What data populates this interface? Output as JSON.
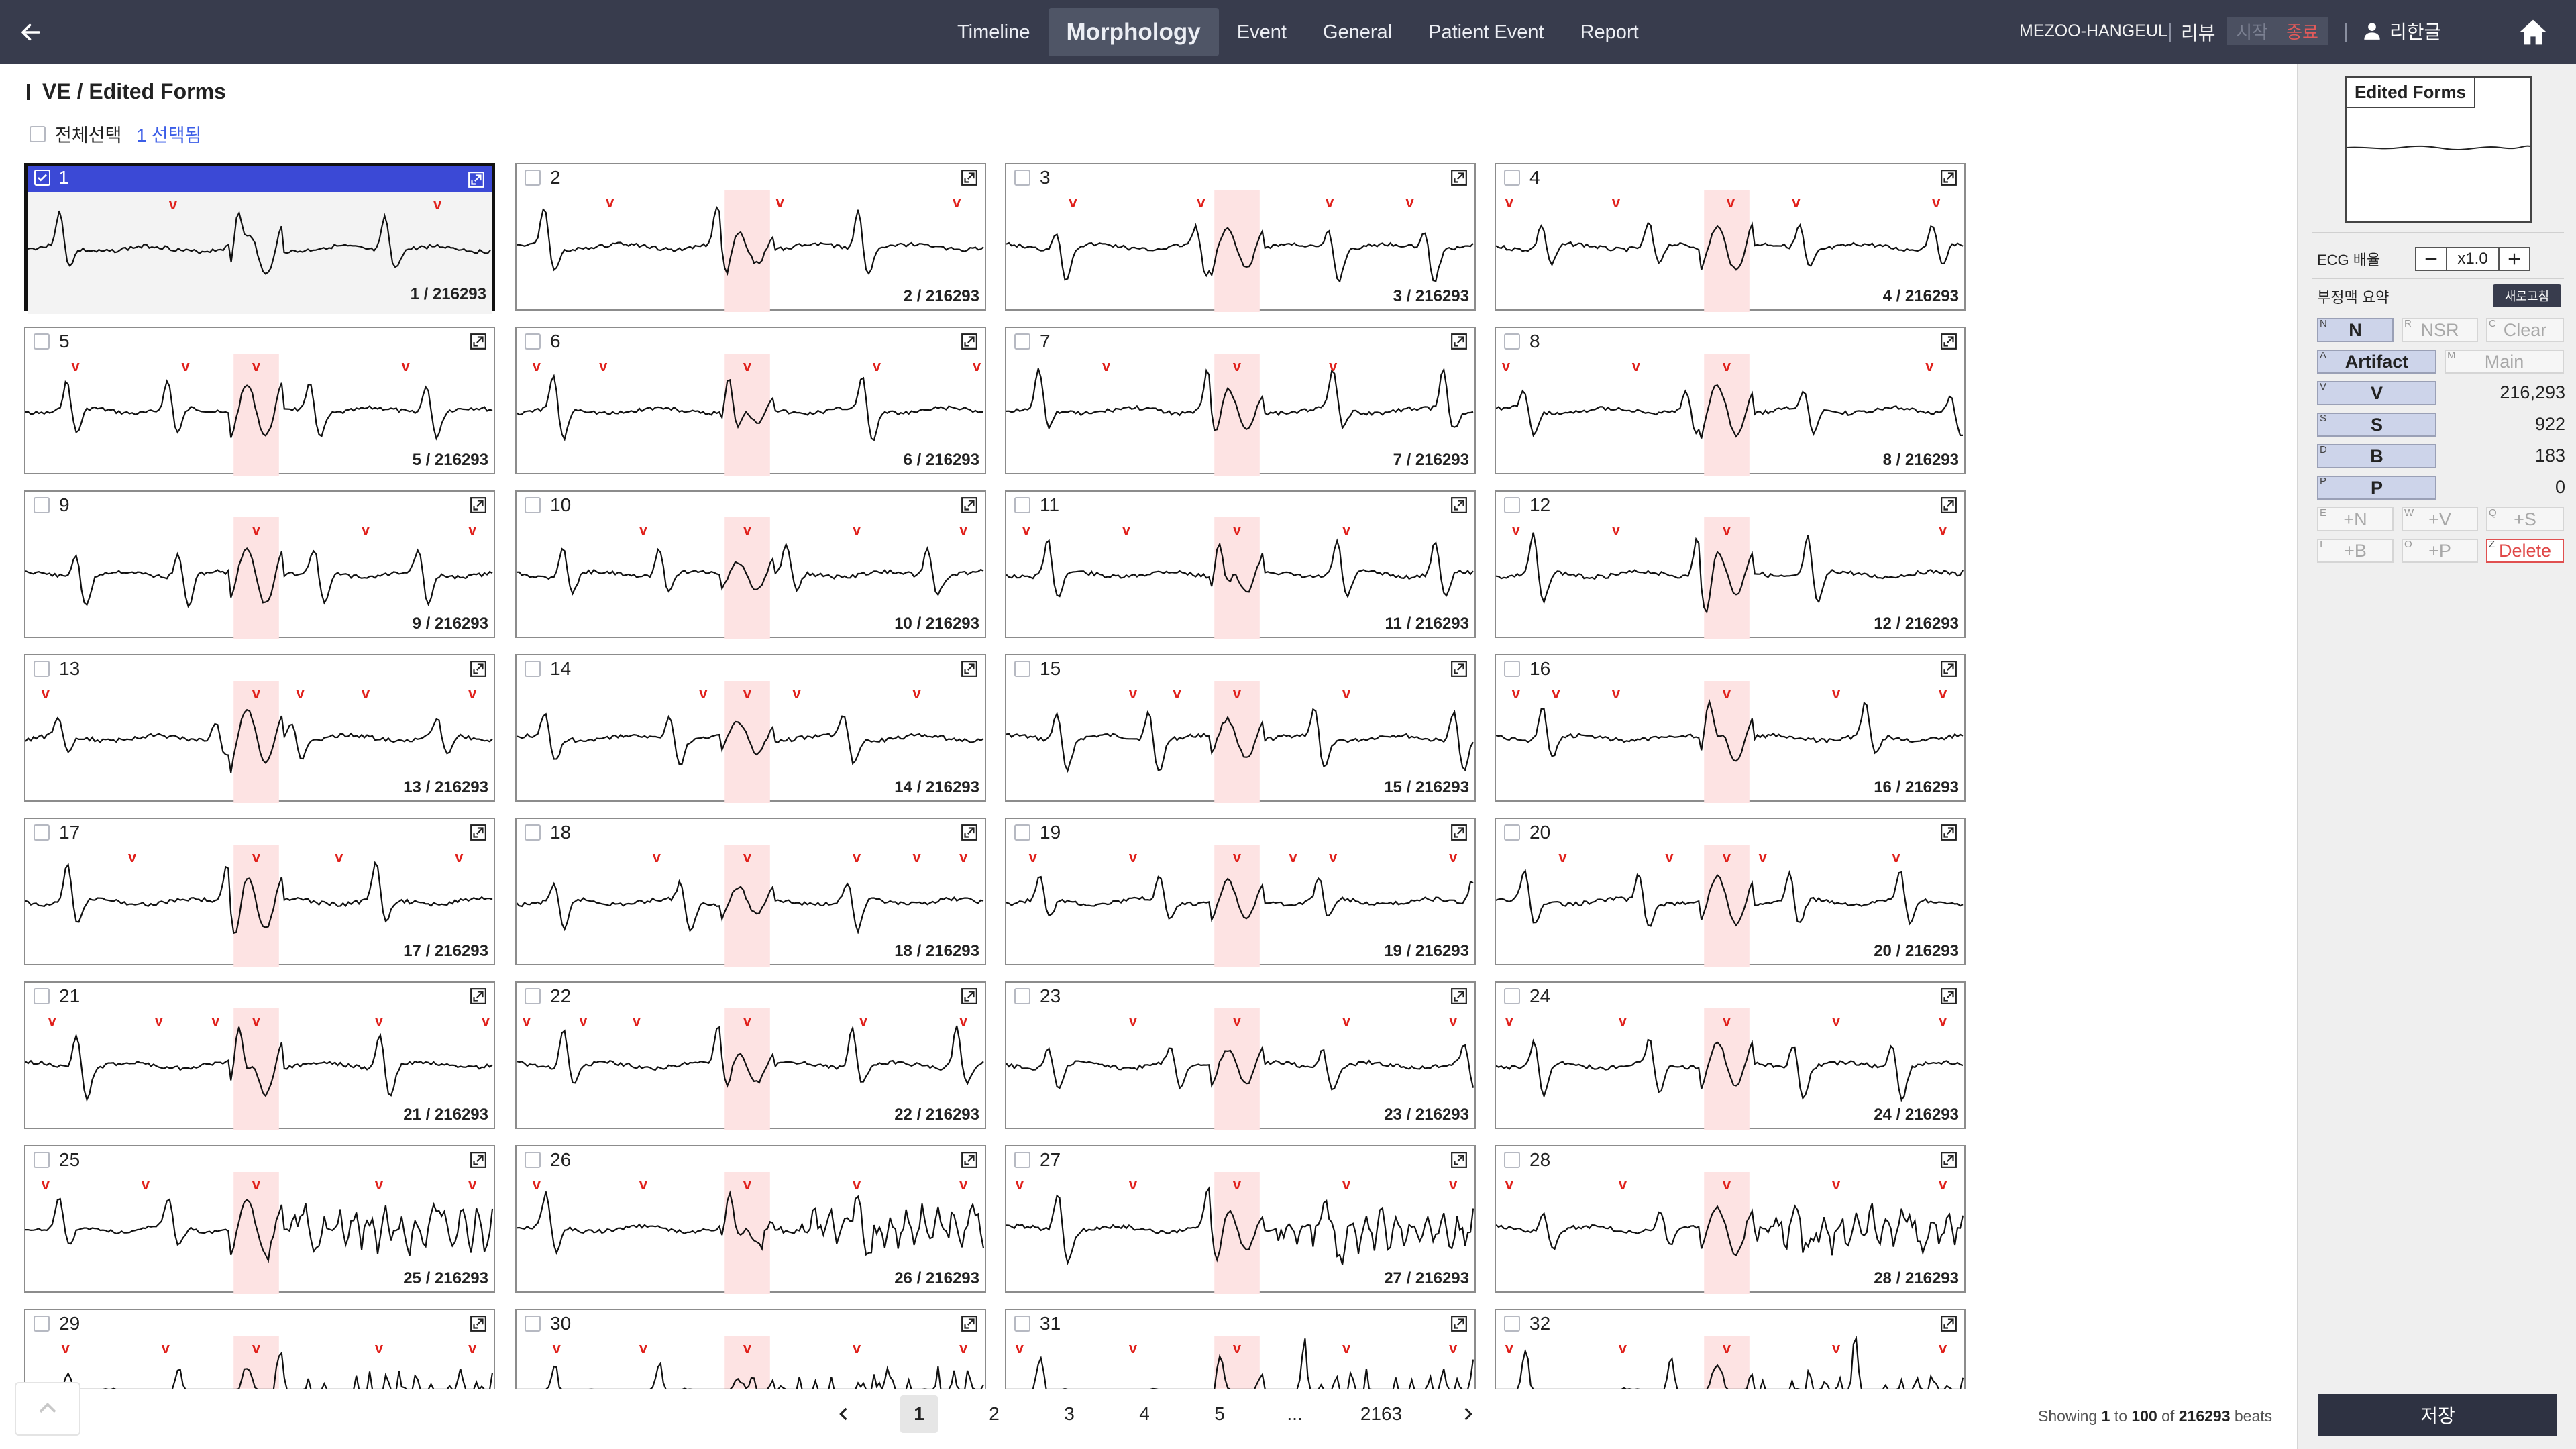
{
  "topbar": {
    "tabs": [
      {
        "label": "Timeline",
        "active": false
      },
      {
        "label": "Morphology",
        "active": true
      },
      {
        "label": "Event",
        "active": false
      },
      {
        "label": "General",
        "active": false
      },
      {
        "label": "Patient Event",
        "active": false
      },
      {
        "label": "Report",
        "active": false
      }
    ],
    "device_name": "MEZOO-HANGEUL",
    "review_label": "리뷰",
    "review_start": "시작",
    "review_end": "종료",
    "user_name": "리한글",
    "icons": {
      "back": "arrow-left-icon",
      "user": "user-icon",
      "home": "home-icon"
    }
  },
  "section": {
    "title": "VE / Edited Forms",
    "select_all_label": "전체선택",
    "selected_count": "1 선택됨"
  },
  "colors": {
    "topbar": "#383c4d",
    "selected_header": "#3b49d6",
    "beat_marker": "#e0201b",
    "highlight": "#fde3e3",
    "reset": "#383c4d"
  },
  "beats": [
    {
      "number": "1",
      "count": "1 / 216293",
      "selected": true
    },
    {
      "number": "2",
      "count": "2 / 216293",
      "selected": false
    },
    {
      "number": "3",
      "count": "3 / 216293",
      "selected": false
    },
    {
      "number": "4",
      "count": "4 / 216293",
      "selected": false
    },
    {
      "number": "5",
      "count": "5 / 216293",
      "selected": false
    },
    {
      "number": "6",
      "count": "6 / 216293",
      "selected": false
    },
    {
      "number": "7",
      "count": "7 / 216293",
      "selected": false
    },
    {
      "number": "8",
      "count": "8 / 216293",
      "selected": false
    },
    {
      "number": "9",
      "count": "9 / 216293",
      "selected": false
    },
    {
      "number": "10",
      "count": "10 / 216293",
      "selected": false
    },
    {
      "number": "11",
      "count": "11 / 216293",
      "selected": false
    },
    {
      "number": "12",
      "count": "12 / 216293",
      "selected": false
    },
    {
      "number": "13",
      "count": "13 / 216293",
      "selected": false
    },
    {
      "number": "14",
      "count": "14 / 216293",
      "selected": false
    },
    {
      "number": "15",
      "count": "15 / 216293",
      "selected": false
    },
    {
      "number": "16",
      "count": "16 / 216293",
      "selected": false
    },
    {
      "number": "17",
      "count": "17 / 216293",
      "selected": false
    },
    {
      "number": "18",
      "count": "18 / 216293",
      "selected": false
    },
    {
      "number": "19",
      "count": "19 / 216293",
      "selected": false
    },
    {
      "number": "20",
      "count": "20 / 216293",
      "selected": false
    },
    {
      "number": "21",
      "count": "21 / 216293",
      "selected": false
    },
    {
      "number": "22",
      "count": "22 / 216293",
      "selected": false
    },
    {
      "number": "23",
      "count": "23 / 216293",
      "selected": false
    },
    {
      "number": "24",
      "count": "24 / 216293",
      "selected": false
    },
    {
      "number": "25",
      "count": "25 / 216293",
      "selected": false
    },
    {
      "number": "26",
      "count": "26 / 216293",
      "selected": false
    },
    {
      "number": "27",
      "count": "27 / 216293",
      "selected": false
    },
    {
      "number": "28",
      "count": "28 / 216293",
      "selected": false
    },
    {
      "number": "29",
      "count": "",
      "selected": false
    },
    {
      "number": "30",
      "count": "",
      "selected": false
    },
    {
      "number": "31",
      "count": "",
      "selected": false
    },
    {
      "number": "32",
      "count": "",
      "selected": false
    }
  ],
  "beat_marker": "v",
  "pagination": {
    "prev_icon": "chevron-left-icon",
    "next_icon": "chevron-right-icon",
    "pages": [
      "1",
      "2",
      "3",
      "4",
      "5",
      "...",
      "2163"
    ],
    "current": "1"
  },
  "showing": {
    "prefix": "Showing",
    "from": "1",
    "to_word": "to",
    "to": "100",
    "of_word": "of",
    "total": "216293",
    "suffix": "beats"
  },
  "right_panel": {
    "preview_label": "Edited Forms",
    "ecg_scale_label": "ECG 배율",
    "ecg_scale_value": "x1.0",
    "summary_title": "부정맥 요약",
    "reset_label": "새로고침",
    "rhythm_buttons": [
      {
        "key": "N",
        "label": "N"
      },
      {
        "key": "R",
        "label": "NSR"
      },
      {
        "key": "C",
        "label": "Clear"
      },
      {
        "key": "A",
        "label": "Artifact"
      },
      {
        "key": "M",
        "label": "Main"
      },
      {
        "key": "V",
        "label": "V",
        "count": "216,293"
      },
      {
        "key": "S",
        "label": "S",
        "count": "922"
      },
      {
        "key": "D",
        "label": "B",
        "count": "183"
      },
      {
        "key": "P",
        "label": "P",
        "count": "0"
      },
      {
        "key": "E",
        "label": "+N"
      },
      {
        "key": "W",
        "label": "+V"
      },
      {
        "key": "Q",
        "label": "+S"
      },
      {
        "key": "I",
        "label": "+B"
      },
      {
        "key": "O",
        "label": "+P"
      },
      {
        "key": "Z",
        "label": "Delete"
      }
    ],
    "save_label": "저장"
  }
}
